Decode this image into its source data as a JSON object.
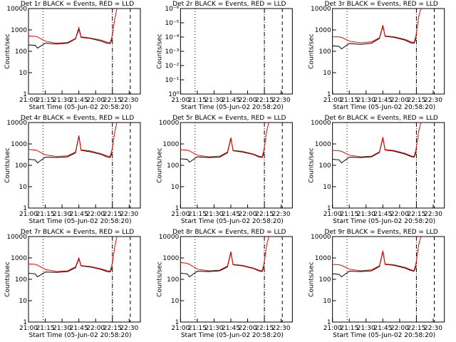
{
  "chart_data": [
    {
      "type": "line",
      "title": "Det 1r BLACK = Events, RED = LLD",
      "xlabel": "Start Time (05-Jun-02 20:58:20)",
      "ylabel": "Counts/sec",
      "log_y": true,
      "xlim": [
        "21:00",
        "22:40"
      ],
      "ylim": [
        1,
        10000
      ],
      "yticks": [
        1,
        10,
        100,
        1000,
        10000
      ],
      "xticks": [
        "21:00",
        "21:15",
        "21:30",
        "21:45",
        "22:00",
        "22:15",
        "22:30"
      ],
      "vlines": [
        "21:13",
        "22:15",
        "22:31"
      ],
      "x": [
        "21:00",
        "21:06",
        "21:08",
        "21:15",
        "21:25",
        "21:35",
        "21:42",
        "21:45",
        "21:47",
        "21:55",
        "22:05",
        "22:10",
        "22:13",
        "22:15",
        "22:17",
        "22:19"
      ],
      "series": [
        {
          "name": "Events",
          "color": "#000000",
          "values": [
            200,
            190,
            140,
            240,
            220,
            240,
            380,
            1100,
            450,
            400,
            300,
            240,
            230,
            400,
            null,
            null
          ]
        },
        {
          "name": "LLD",
          "color": "#ff0000",
          "values": [
            520,
            500,
            470,
            300,
            240,
            260,
            400,
            1300,
            480,
            420,
            330,
            270,
            250,
            600,
            3000,
            10000
          ]
        }
      ]
    },
    {
      "type": "line",
      "title": "Det 2r BLACK = Events, RED = LLD",
      "xlabel": "Start Time (05-Jun-02 20:58:20)",
      "ylabel": "Counts/sec",
      "log_y": true,
      "xlim": [
        "21:00",
        "22:40"
      ],
      "ylim": [
        1,
        1e-06
      ],
      "yticks": [
        {
          "value": 1,
          "label": "10⁰"
        },
        {
          "value": 0.1,
          "label": "10⁻¹"
        },
        {
          "value": 0.01,
          "label": "10⁻²"
        },
        {
          "value": 0.001,
          "label": "10⁻³"
        },
        {
          "value": 0.0001,
          "label": "10⁻⁴"
        },
        {
          "value": 1e-05,
          "label": "10⁻⁵"
        },
        {
          "value": 1e-06,
          "label": "10⁻⁶"
        }
      ],
      "xticks": [
        "21:00",
        "21:15",
        "21:30",
        "21:45",
        "22:00",
        "22:15",
        "22:30"
      ],
      "vlines": [
        "21:13",
        "22:15",
        "22:31"
      ],
      "x": [],
      "series": []
    },
    {
      "type": "line",
      "title": "Det 3r BLACK = Events, RED = LLD",
      "xlabel": "Start Time (05-Jun-02 20:58:20)",
      "ylabel": "Counts/sec",
      "log_y": true,
      "xlim": [
        "21:00",
        "22:40"
      ],
      "ylim": [
        1,
        10000
      ],
      "yticks": [
        1,
        10,
        100,
        1000,
        10000
      ],
      "xticks": [
        "21:00",
        "21:15",
        "21:30",
        "21:45",
        "22:00",
        "22:15",
        "22:30"
      ],
      "vlines": [
        "21:13",
        "22:15",
        "22:31"
      ],
      "x": [
        "21:00",
        "21:06",
        "21:08",
        "21:15",
        "21:25",
        "21:35",
        "21:42",
        "21:45",
        "21:47",
        "21:55",
        "22:05",
        "22:10",
        "22:13",
        "22:15",
        "22:17",
        "22:19"
      ],
      "series": [
        {
          "name": "Events",
          "color": "#000000",
          "values": [
            180,
            170,
            130,
            230,
            210,
            240,
            400,
            1500,
            500,
            450,
            330,
            250,
            240,
            450,
            null,
            null
          ]
        },
        {
          "name": "LLD",
          "color": "#ff0000",
          "values": [
            480,
            470,
            450,
            300,
            250,
            280,
            430,
            1700,
            520,
            480,
            360,
            280,
            260,
            700,
            4000,
            10000
          ]
        }
      ]
    },
    {
      "type": "line",
      "title": "Det 4r BLACK = Events, RED = LLD",
      "xlabel": "Start Time (05-Jun-02 20:58:20)",
      "ylabel": "Counts/sec",
      "log_y": true,
      "xlim": [
        "21:00",
        "22:40"
      ],
      "ylim": [
        1,
        10000
      ],
      "yticks": [
        1,
        10,
        100,
        1000,
        10000
      ],
      "xticks": [
        "21:00",
        "21:15",
        "21:30",
        "21:45",
        "22:00",
        "22:15",
        "22:30"
      ],
      "vlines": [
        "21:13",
        "22:15",
        "22:31"
      ],
      "x": [
        "21:00",
        "21:06",
        "21:08",
        "21:15",
        "21:25",
        "21:35",
        "21:42",
        "21:45",
        "21:47",
        "21:55",
        "22:05",
        "22:10",
        "22:13",
        "22:15",
        "22:17",
        "22:19"
      ],
      "series": [
        {
          "name": "Events",
          "color": "#000000",
          "values": [
            190,
            180,
            130,
            240,
            230,
            250,
            380,
            2300,
            500,
            430,
            320,
            250,
            230,
            420,
            null,
            null
          ]
        },
        {
          "name": "LLD",
          "color": "#ff0000",
          "values": [
            560,
            520,
            480,
            310,
            260,
            280,
            420,
            2500,
            530,
            470,
            350,
            280,
            260,
            650,
            3500,
            10000
          ]
        }
      ]
    },
    {
      "type": "line",
      "title": "Det 5r BLACK = Events, RED = LLD",
      "xlabel": "Start Time (05-Jun-02 20:58:20)",
      "ylabel": "Counts/sec",
      "log_y": true,
      "xlim": [
        "21:00",
        "22:40"
      ],
      "ylim": [
        1,
        10000
      ],
      "yticks": [
        1,
        10,
        100,
        1000,
        10000
      ],
      "xticks": [
        "21:00",
        "21:15",
        "21:30",
        "21:45",
        "22:00",
        "22:15",
        "22:30"
      ],
      "vlines": [
        "21:13",
        "22:15",
        "22:31"
      ],
      "x": [
        "21:00",
        "21:06",
        "21:08",
        "21:15",
        "21:25",
        "21:35",
        "21:42",
        "21:45",
        "21:47",
        "21:55",
        "22:05",
        "22:10",
        "22:13",
        "22:15",
        "22:17",
        "22:19"
      ],
      "series": [
        {
          "name": "Events",
          "color": "#000000",
          "values": [
            200,
            190,
            140,
            250,
            230,
            240,
            380,
            1800,
            480,
            420,
            320,
            250,
            230,
            420,
            null,
            null
          ]
        },
        {
          "name": "LLD",
          "color": "#ff0000",
          "values": [
            540,
            510,
            470,
            300,
            250,
            270,
            420,
            2000,
            500,
            450,
            340,
            270,
            250,
            700,
            4000,
            10000
          ]
        }
      ]
    },
    {
      "type": "line",
      "title": "Det 6r BLACK = Events, RED = LLD",
      "xlabel": "Start Time (05-Jun-02 20:58:20)",
      "ylabel": "Counts/sec",
      "log_y": true,
      "xlim": [
        "21:00",
        "22:40"
      ],
      "ylim": [
        1,
        10000
      ],
      "yticks": [
        1,
        10,
        100,
        1000,
        10000
      ],
      "xticks": [
        "21:00",
        "21:15",
        "21:30",
        "21:45",
        "22:00",
        "22:15",
        "22:30"
      ],
      "vlines": [
        "21:13",
        "22:15",
        "22:31"
      ],
      "x": [
        "21:00",
        "21:06",
        "21:08",
        "21:15",
        "21:25",
        "21:35",
        "21:42",
        "21:45",
        "21:47",
        "21:55",
        "22:05",
        "22:10",
        "22:13",
        "22:15",
        "22:17",
        "22:19"
      ],
      "series": [
        {
          "name": "Events",
          "color": "#000000",
          "values": [
            190,
            180,
            130,
            240,
            230,
            250,
            400,
            1900,
            520,
            460,
            330,
            260,
            240,
            450,
            null,
            null
          ]
        },
        {
          "name": "LLD",
          "color": "#ff0000",
          "values": [
            500,
            480,
            450,
            300,
            250,
            270,
            430,
            2100,
            540,
            490,
            360,
            280,
            260,
            700,
            3800,
            10000
          ]
        }
      ]
    },
    {
      "type": "line",
      "title": "Det 7r BLACK = Events, RED = LLD",
      "xlabel": "Start Time (05-Jun-02 20:58:20)",
      "ylabel": "Counts/sec",
      "log_y": true,
      "xlim": [
        "21:00",
        "22:40"
      ],
      "ylim": [
        1,
        10000
      ],
      "yticks": [
        1,
        10,
        100,
        1000,
        10000
      ],
      "xticks": [
        "21:00",
        "21:15",
        "21:30",
        "21:45",
        "22:00",
        "22:15",
        "22:30"
      ],
      "vlines": [
        "21:13",
        "22:15",
        "22:31"
      ],
      "x": [
        "21:00",
        "21:06",
        "21:08",
        "21:15",
        "21:25",
        "21:35",
        "21:42",
        "21:45",
        "21:47",
        "21:55",
        "22:05",
        "22:10",
        "22:13",
        "22:15",
        "22:17",
        "22:19"
      ],
      "series": [
        {
          "name": "Events",
          "color": "#000000",
          "values": [
            190,
            180,
            130,
            220,
            210,
            230,
            350,
            900,
            420,
            380,
            290,
            230,
            220,
            380,
            null,
            null
          ]
        },
        {
          "name": "LLD",
          "color": "#ff0000",
          "values": [
            520,
            500,
            460,
            290,
            230,
            250,
            380,
            1000,
            440,
            400,
            310,
            260,
            240,
            600,
            3000,
            10000
          ]
        }
      ]
    },
    {
      "type": "line",
      "title": "Det 8r BLACK = Events, RED = LLD",
      "xlabel": "Start Time (05-Jun-02 20:58:20)",
      "ylabel": "Counts/sec",
      "log_y": true,
      "xlim": [
        "21:00",
        "22:40"
      ],
      "ylim": [
        1,
        10000
      ],
      "yticks": [
        1,
        10,
        100,
        1000,
        10000
      ],
      "xticks": [
        "21:00",
        "21:15",
        "21:30",
        "21:45",
        "22:00",
        "22:15",
        "22:30"
      ],
      "vlines": [
        "21:13",
        "22:15",
        "22:31"
      ],
      "x": [
        "21:00",
        "21:06",
        "21:08",
        "21:15",
        "21:25",
        "21:35",
        "21:42",
        "21:45",
        "21:47",
        "21:55",
        "22:05",
        "22:10",
        "22:13",
        "22:15",
        "22:17",
        "22:19"
      ],
      "series": [
        {
          "name": "Events",
          "color": "#000000",
          "values": [
            190,
            180,
            130,
            240,
            230,
            250,
            380,
            1800,
            480,
            430,
            320,
            250,
            230,
            420,
            null,
            null
          ]
        },
        {
          "name": "LLD",
          "color": "#ff0000",
          "values": [
            620,
            560,
            500,
            300,
            250,
            270,
            420,
            2000,
            500,
            450,
            340,
            270,
            250,
            700,
            4000,
            10000
          ]
        }
      ]
    },
    {
      "type": "line",
      "title": "Det 9r BLACK = Events, RED = LLD",
      "xlabel": "Start Time (05-Jun-02 20:58:20)",
      "ylabel": "Counts/sec",
      "log_y": true,
      "xlim": [
        "21:00",
        "22:40"
      ],
      "ylim": [
        1,
        10000
      ],
      "yticks": [
        1,
        10,
        100,
        1000,
        10000
      ],
      "xticks": [
        "21:00",
        "21:15",
        "21:30",
        "21:45",
        "22:00",
        "22:15",
        "22:30"
      ],
      "vlines": [
        "21:13",
        "22:15",
        "22:31"
      ],
      "x": [
        "21:00",
        "21:06",
        "21:08",
        "21:15",
        "21:25",
        "21:35",
        "21:42",
        "21:45",
        "21:47",
        "21:55",
        "22:05",
        "22:10",
        "22:13",
        "22:15",
        "22:17",
        "22:19"
      ],
      "series": [
        {
          "name": "Events",
          "color": "#000000",
          "values": [
            180,
            170,
            130,
            240,
            230,
            250,
            400,
            2000,
            500,
            450,
            330,
            260,
            240,
            450,
            null,
            null
          ]
        },
        {
          "name": "LLD",
          "color": "#ff0000",
          "values": [
            500,
            480,
            450,
            300,
            250,
            280,
            430,
            2200,
            520,
            480,
            360,
            280,
            260,
            700,
            4000,
            10000
          ]
        }
      ]
    }
  ]
}
